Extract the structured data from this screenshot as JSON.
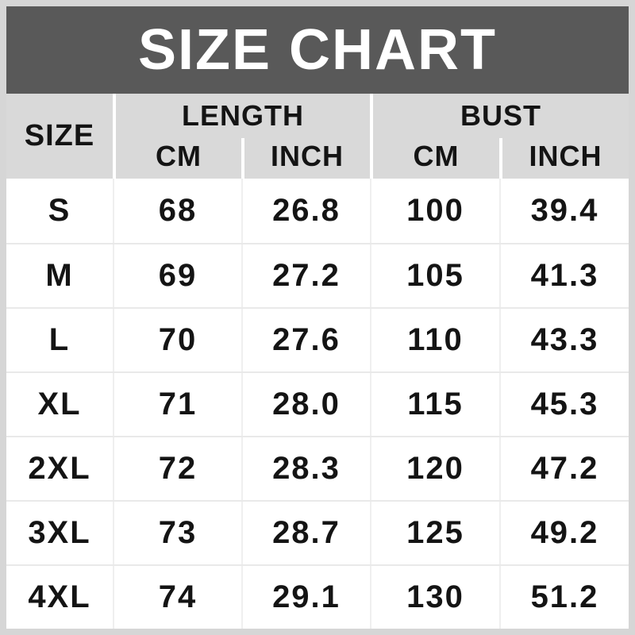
{
  "title": "SIZE CHART",
  "colors": {
    "title_bg": "#595959",
    "title_text": "#ffffff",
    "header_bg": "#d9d9d9",
    "frame": "#d6d6d6",
    "text": "#141414"
  },
  "header": {
    "size": "SIZE",
    "length_group": "LENGTH",
    "bust_group": "BUST",
    "cm": "CM",
    "inch": "INCH"
  },
  "rows": [
    {
      "size": "S",
      "length_cm": "68",
      "length_inch": "26.8",
      "bust_cm": "100",
      "bust_inch": "39.4"
    },
    {
      "size": "M",
      "length_cm": "69",
      "length_inch": "27.2",
      "bust_cm": "105",
      "bust_inch": "41.3"
    },
    {
      "size": "L",
      "length_cm": "70",
      "length_inch": "27.6",
      "bust_cm": "110",
      "bust_inch": "43.3"
    },
    {
      "size": "XL",
      "length_cm": "71",
      "length_inch": "28.0",
      "bust_cm": "115",
      "bust_inch": "45.3"
    },
    {
      "size": "2XL",
      "length_cm": "72",
      "length_inch": "28.3",
      "bust_cm": "120",
      "bust_inch": "47.2"
    },
    {
      "size": "3XL",
      "length_cm": "73",
      "length_inch": "28.7",
      "bust_cm": "125",
      "bust_inch": "49.2"
    },
    {
      "size": "4XL",
      "length_cm": "74",
      "length_inch": "29.1",
      "bust_cm": "130",
      "bust_inch": "51.2"
    }
  ],
  "chart_data": {
    "type": "table",
    "title": "SIZE CHART",
    "column_groups": [
      {
        "label": "SIZE",
        "children": []
      },
      {
        "label": "LENGTH",
        "children": [
          "CM",
          "INCH"
        ]
      },
      {
        "label": "BUST",
        "children": [
          "CM",
          "INCH"
        ]
      }
    ],
    "columns": [
      "SIZE",
      "LENGTH CM",
      "LENGTH INCH",
      "BUST CM",
      "BUST INCH"
    ],
    "rows": [
      [
        "S",
        68,
        26.8,
        100,
        39.4
      ],
      [
        "M",
        69,
        27.2,
        105,
        41.3
      ],
      [
        "L",
        70,
        27.6,
        110,
        43.3
      ],
      [
        "XL",
        71,
        28.0,
        115,
        45.3
      ],
      [
        "2XL",
        72,
        28.3,
        120,
        47.2
      ],
      [
        "3XL",
        73,
        28.7,
        125,
        49.2
      ],
      [
        "4XL",
        74,
        29.1,
        130,
        51.2
      ]
    ]
  }
}
